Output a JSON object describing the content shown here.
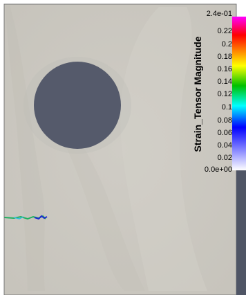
{
  "legend": {
    "title": "Strain_Tensor Magnitude",
    "ticks": [
      "2.4e-01",
      "0.22",
      "0.2",
      "0.18",
      "0.16",
      "0.14",
      "0.12",
      "0.1",
      "0.08",
      "0.06",
      "0.04",
      "0.02",
      "0.0e+00"
    ]
  },
  "colors": {
    "background": "#cbc8c0",
    "obstacle": "#555a6b",
    "frame": "#4f5565"
  }
}
